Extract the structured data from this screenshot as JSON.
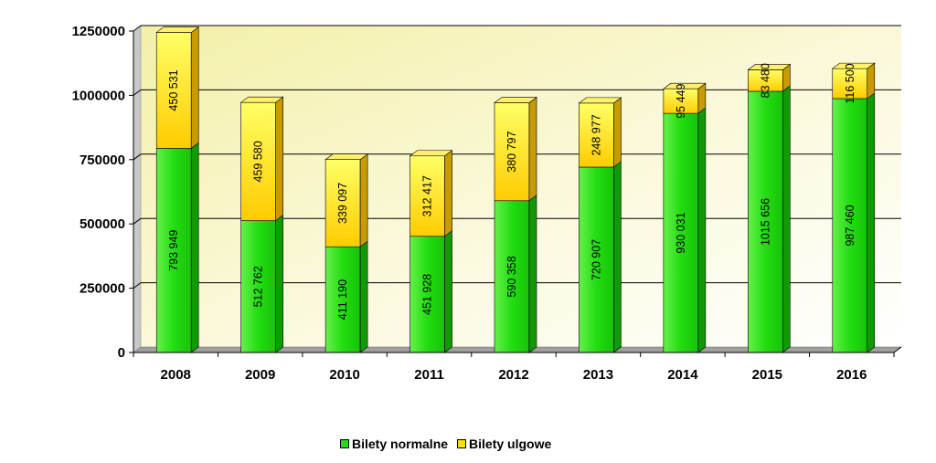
{
  "chart_data": {
    "type": "bar",
    "stacked": true,
    "categories": [
      "2008",
      "2009",
      "2010",
      "2011",
      "2012",
      "2013",
      "2014",
      "2015",
      "2016"
    ],
    "series": [
      {
        "name": "Bilety normalne",
        "color": "#22dd11",
        "values": [
          793949,
          512762,
          411190,
          451928,
          590358,
          720907,
          930031,
          1015656,
          987460
        ],
        "labels": [
          "793 949",
          "512 762",
          "411 190",
          "451 928",
          "590 358",
          "720 907",
          "930 031",
          "1015 656",
          "987 460"
        ]
      },
      {
        "name": "Bilety ulgowe",
        "color": "#ffdd00",
        "values": [
          450531,
          459580,
          339097,
          312417,
          380797,
          248977,
          95449,
          83480,
          116500
        ],
        "labels": [
          "450 531",
          "459 580",
          "339 097",
          "312 417",
          "380 797",
          "248 977",
          "95 449",
          "83 480",
          "116 500"
        ]
      }
    ],
    "yticks": [
      "0",
      "250000",
      "500000",
      "750000",
      "1000000",
      "1250000"
    ],
    "ylim": [
      0,
      1250000
    ],
    "grid": true,
    "legend": "bottom-center"
  }
}
